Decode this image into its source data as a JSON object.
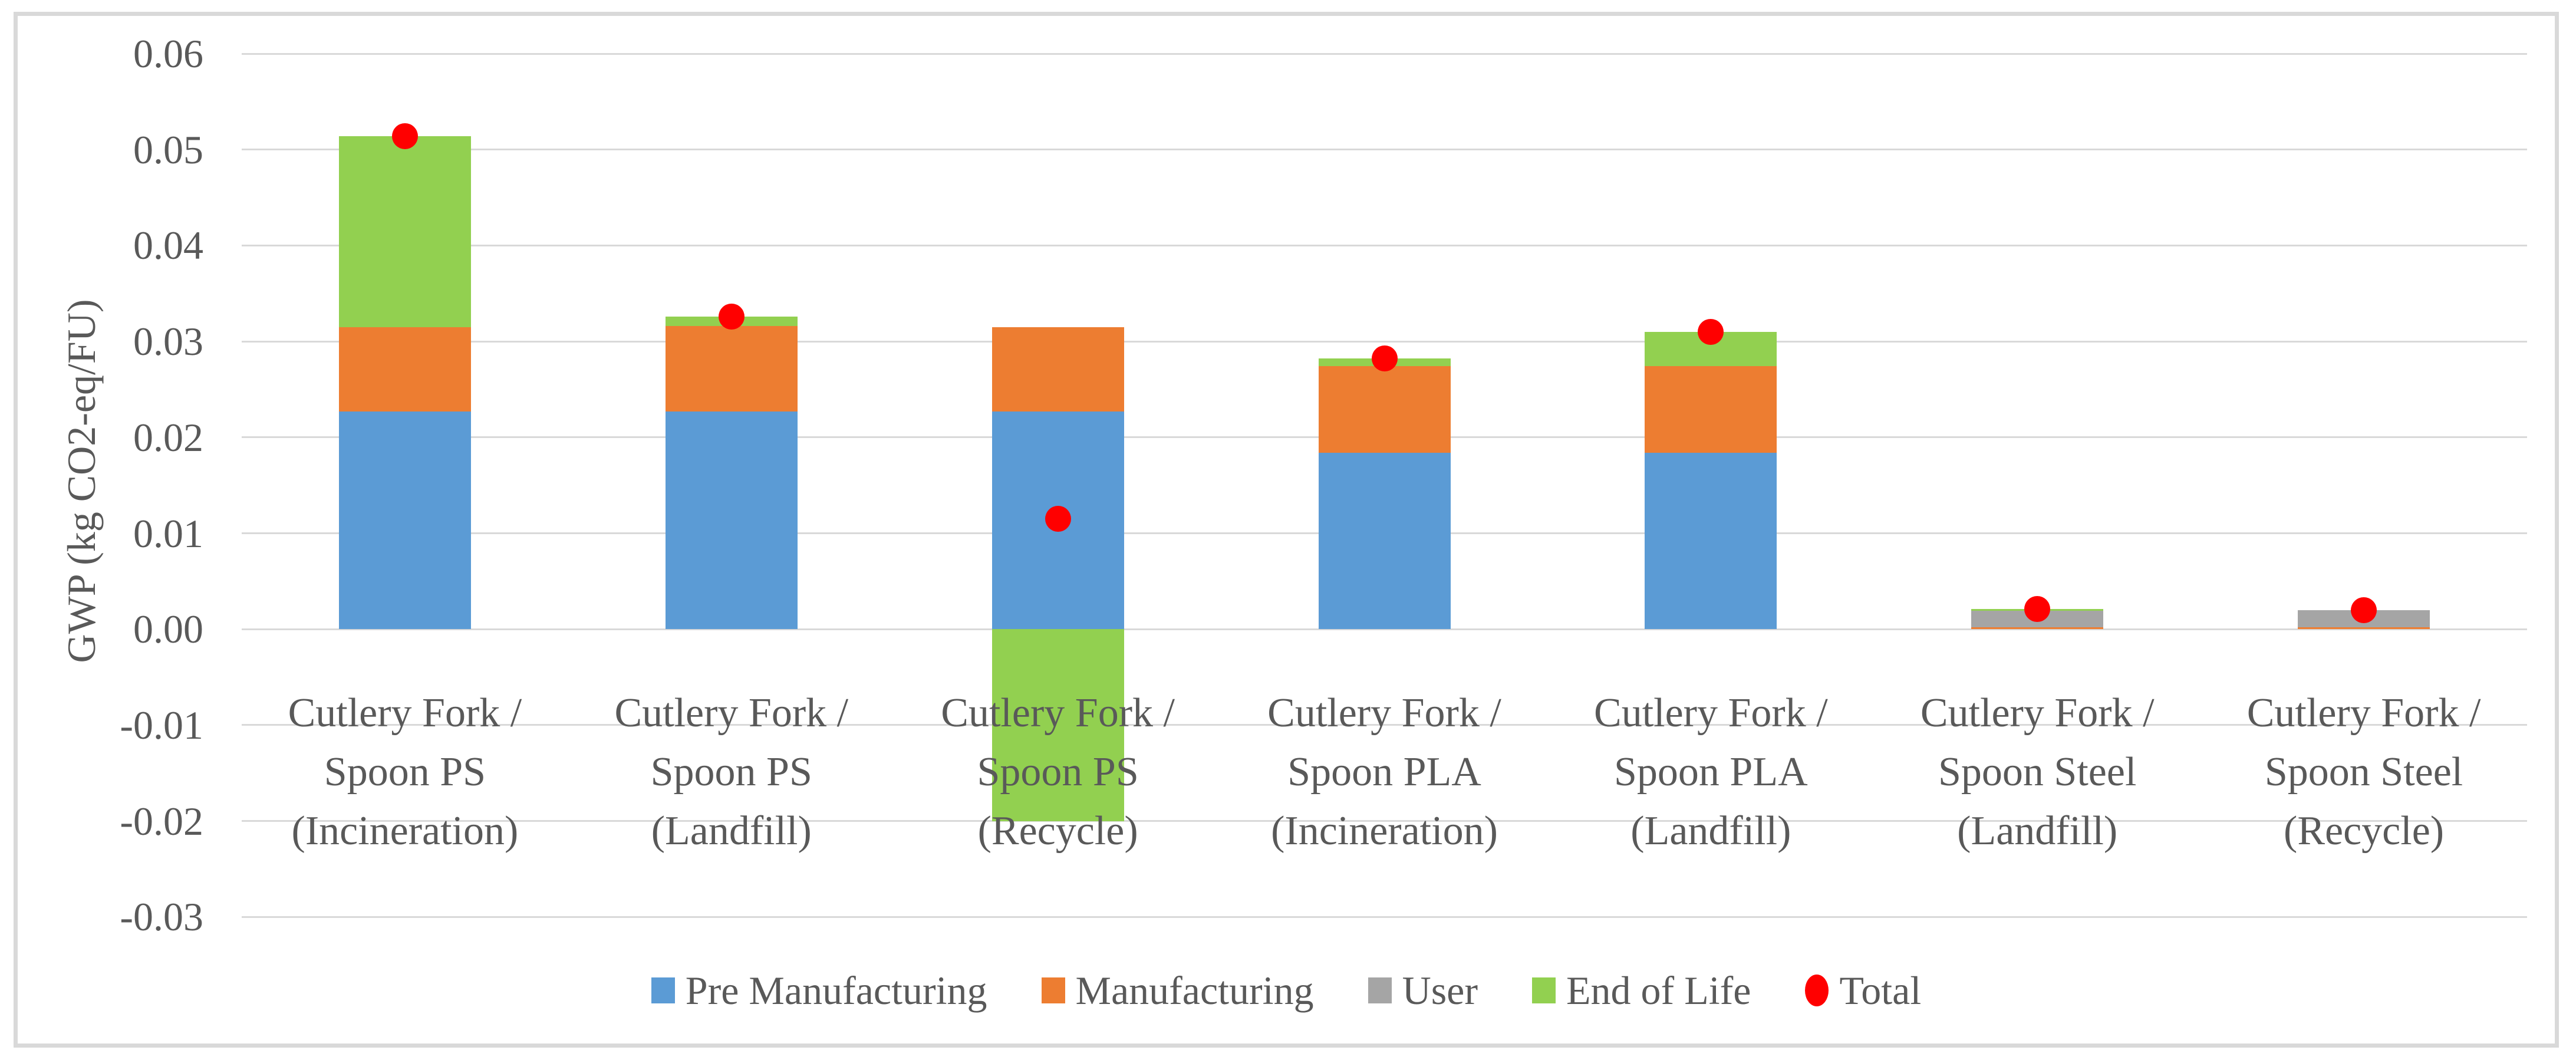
{
  "page": {
    "background": "#FFFFFF",
    "frame_border_color": "#D9D9D9",
    "gridline_color": "#D9D9D9",
    "text_color": "#595959"
  },
  "chart_data": {
    "type": "bar",
    "stacked": true,
    "title": "",
    "xlabel": "",
    "ylabel": "GWP (kg CO2-eq/FU)",
    "ylim": [
      -0.03,
      0.06
    ],
    "ytick_step": 0.01,
    "ytick_labels": [
      "0.06",
      "0.05",
      "0.04",
      "0.03",
      "0.02",
      "0.01",
      "0.00",
      "-0.01",
      "-0.02",
      "-0.03"
    ],
    "grid": true,
    "legend_position": "bottom",
    "categories": [
      "Cutlery Fork /\nSpoon PS\n(Incineration)",
      "Cutlery Fork /\nSpoon PS\n(Landfill)",
      "Cutlery Fork /\nSpoon PS\n(Recycle)",
      "Cutlery Fork /\nSpoon PLA\n(Incineration)",
      "Cutlery Fork /\nSpoon PLA\n(Landfill)",
      "Cutlery Fork /\nSpoon Steel\n(Landfill)",
      "Cutlery Fork /\nSpoon Steel\n(Recycle)"
    ],
    "series": [
      {
        "name": "Pre Manufacturing",
        "color": "#5B9BD5",
        "values": [
          0.0227,
          0.0227,
          0.0227,
          0.0184,
          0.0184,
          0.0,
          0.0
        ]
      },
      {
        "name": "Manufacturing",
        "color": "#ED7D31",
        "values": [
          0.0088,
          0.0089,
          0.0088,
          0.009,
          0.009,
          0.0002,
          0.0002
        ]
      },
      {
        "name": "User",
        "color": "#A5A5A5",
        "values": [
          0.0,
          0.0,
          0.0,
          0.0,
          0.0,
          0.0017,
          0.0018
        ]
      },
      {
        "name": "End of Life",
        "color": "#92D050",
        "values": [
          0.0199,
          0.001,
          -0.02,
          0.0008,
          0.0036,
          0.0002,
          0.0
        ]
      }
    ],
    "point_series": {
      "name": "Total",
      "color": "#FF0000",
      "values": [
        0.0514,
        0.0326,
        0.0115,
        0.0282,
        0.031,
        0.0021,
        0.002
      ]
    }
  }
}
